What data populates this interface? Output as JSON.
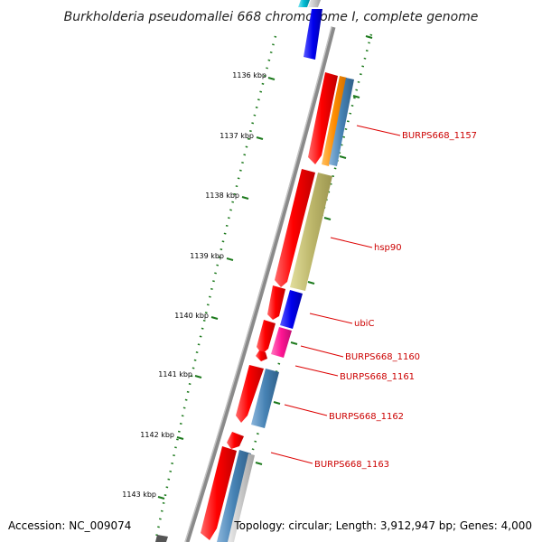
{
  "title": "Burkholderia pseudomallei 668 chromosome I, complete genome",
  "accession": "Accession: NC_009074",
  "topology": "Topology: circular; Length: 3,912,947 bp; Genes: 4,000",
  "ticks": [
    {
      "label": "1136 kbp"
    },
    {
      "label": "1137 kbp"
    },
    {
      "label": "1138 kbp"
    },
    {
      "label": "1139 kbp"
    },
    {
      "label": "1140 kbp"
    },
    {
      "label": "1141 kbp"
    },
    {
      "label": "1142 kbp"
    },
    {
      "label": "1143 kbp"
    }
  ],
  "gene_labels": [
    {
      "name": "BURPS668_1157"
    },
    {
      "name": "hsp90"
    },
    {
      "name": "ubiC"
    },
    {
      "name": "BURPS668_1160"
    },
    {
      "name": "BURPS668_1161"
    },
    {
      "name": "BURPS668_1162"
    },
    {
      "name": "BURPS668_1163"
    }
  ],
  "colors": {
    "backbone": "#7a7a7a",
    "ticks_green": "#1d7a1d",
    "gene_red": "#ee0000",
    "orange": "#ff8c00",
    "steelblue": "#4682b4",
    "khaki": "#bdb76b",
    "blue": "#0000ee",
    "magenta": "#ff1493",
    "lightgray": "#c8c8c8",
    "cyan": "#00bcd4",
    "label_red": "#cc0000"
  }
}
